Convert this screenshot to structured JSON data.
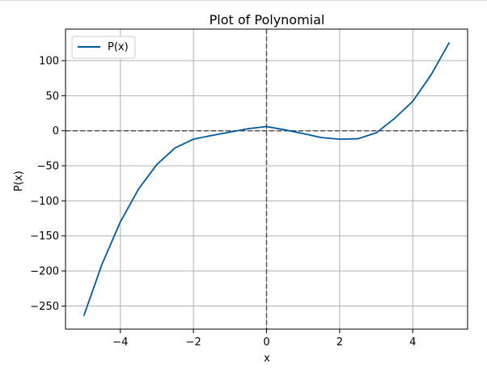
{
  "chart_data": {
    "type": "line",
    "title": "Plot of Polynomial",
    "xlabel": "x",
    "ylabel": "P(x)",
    "xlim": [
      -5.5,
      5.5
    ],
    "ylim": [
      -283,
      145
    ],
    "xticks": [
      -4,
      -2,
      0,
      2,
      4
    ],
    "xtick_labels": [
      "−4",
      "−2",
      "0",
      "2",
      "4"
    ],
    "yticks": [
      100,
      50,
      0,
      -50,
      -100,
      -150,
      -200,
      -250
    ],
    "ytick_labels": [
      "100",
      "50",
      "0",
      "−50",
      "−100",
      "−150",
      "−200",
      "−250"
    ],
    "grid": true,
    "legend": {
      "position": "top-left",
      "entries": [
        "P(x)"
      ]
    },
    "reference_lines": {
      "horizontal_y": 0,
      "vertical_x": 0,
      "style": "dashed",
      "color": "#555555"
    },
    "series": [
      {
        "name": "P(x)",
        "color": "#005a9e",
        "x": [
          -5,
          -4.5,
          -4,
          -3.5,
          -3,
          -2.5,
          -2,
          -1.5,
          -1,
          -0.5,
          0,
          0.5,
          1,
          1.5,
          2,
          2.5,
          3,
          3.5,
          4,
          4.5,
          5
        ],
        "y": [
          -264,
          -190.1,
          -130,
          -82.9,
          -48,
          -24.4,
          -12,
          -6.7,
          -2,
          3,
          6,
          1.3,
          -4,
          -9.7,
          -12,
          -11.4,
          -3,
          17.5,
          42,
          79.6,
          126
        ]
      }
    ]
  }
}
